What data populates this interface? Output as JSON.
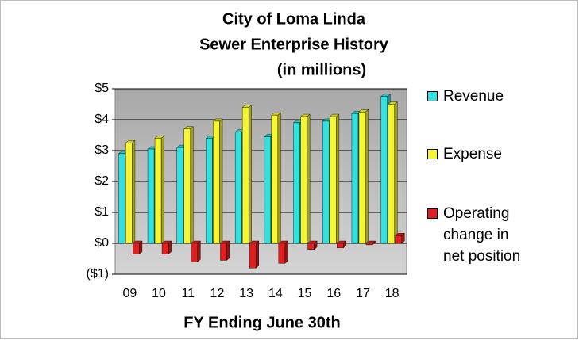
{
  "chart_data": {
    "type": "bar",
    "title": [
      "City of Loma Linda",
      "Sewer Enterprise History",
      "(in millions)"
    ],
    "x_label": "FY Ending June 30th",
    "categories": [
      "09",
      "10",
      "11",
      "12",
      "13",
      "14",
      "15",
      "16",
      "17",
      "18"
    ],
    "series": [
      {
        "name": "Revenue",
        "color": "#33e0e0",
        "values": [
          2.9,
          3.05,
          3.1,
          3.4,
          3.6,
          3.45,
          3.9,
          3.95,
          4.2,
          4.75
        ]
      },
      {
        "name": "Expense",
        "color": "#f5f532",
        "values": [
          3.25,
          3.4,
          3.7,
          3.95,
          4.4,
          4.15,
          4.1,
          4.1,
          4.25,
          4.5
        ]
      },
      {
        "name": "Operating change in net position",
        "color": "#e02020",
        "values": [
          -0.35,
          -0.35,
          -0.6,
          -0.55,
          -0.8,
          -0.65,
          -0.2,
          -0.15,
          -0.05,
          0.25
        ]
      }
    ],
    "ylim": [
      -1,
      5
    ],
    "yticks": [
      {
        "value": -1,
        "label": "($1)"
      },
      {
        "value": 0,
        "label": "$0"
      },
      {
        "value": 1,
        "label": "$1"
      },
      {
        "value": 2,
        "label": "$2"
      },
      {
        "value": 3,
        "label": "$3"
      },
      {
        "value": 4,
        "label": "$4"
      },
      {
        "value": 5,
        "label": "$5"
      }
    ],
    "grid": true,
    "legend": "right"
  }
}
